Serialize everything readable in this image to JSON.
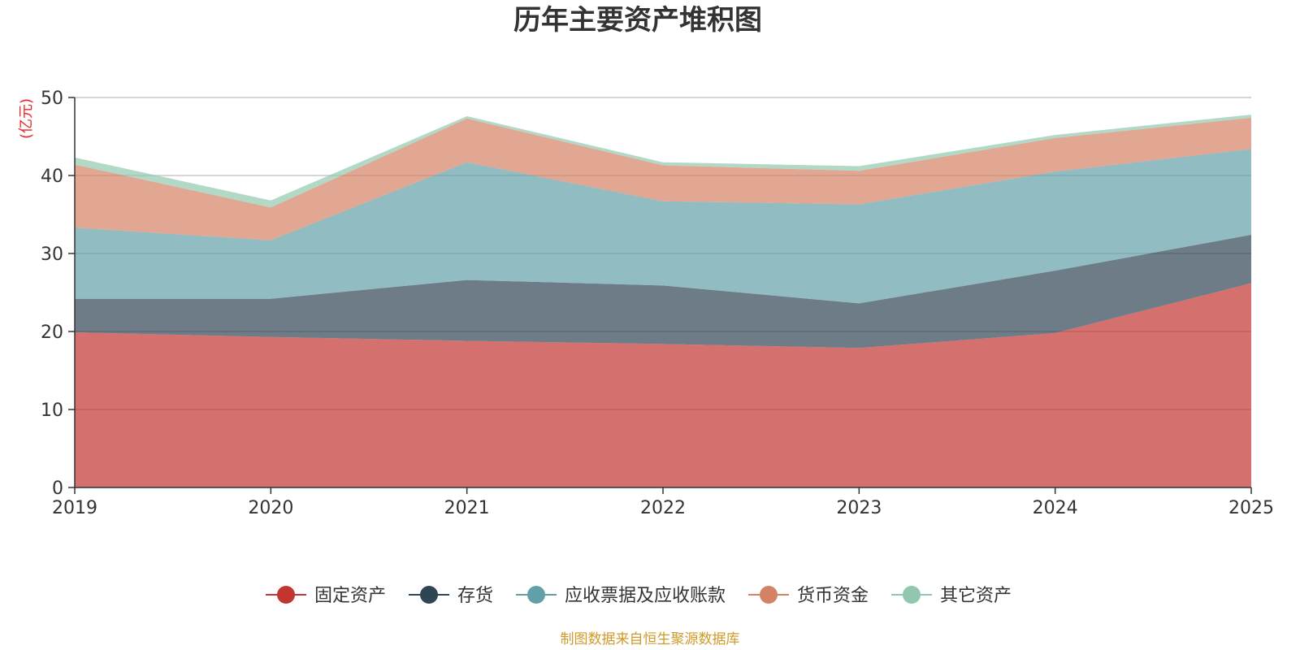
{
  "chart_data": {
    "type": "area",
    "stacked": true,
    "title": "历年主要资产堆积图",
    "unit_label": "(亿元)",
    "x": [
      "2019",
      "2020",
      "2021",
      "2022",
      "2023",
      "2024",
      "2025"
    ],
    "ylim": [
      0,
      50
    ],
    "yticks": [
      "0",
      "10",
      "20",
      "30",
      "40",
      "50"
    ],
    "grid": true,
    "legend_position": "bottom-center",
    "series": [
      {
        "name": "固定资产",
        "color": "#c23531",
        "values": [
          19.9,
          19.3,
          18.8,
          18.4,
          17.9,
          19.8,
          26.2
        ]
      },
      {
        "name": "存货",
        "color": "#2f4554",
        "values": [
          4.3,
          4.9,
          7.8,
          7.5,
          5.7,
          8.0,
          6.2
        ]
      },
      {
        "name": "应收票据及应收账款",
        "color": "#61a0a8",
        "values": [
          9.1,
          7.5,
          15.1,
          10.8,
          12.7,
          12.7,
          11.0
        ]
      },
      {
        "name": "货币资金",
        "color": "#d48265",
        "values": [
          8.1,
          4.2,
          5.6,
          4.6,
          4.3,
          4.3,
          4.0
        ]
      },
      {
        "name": "其它资产",
        "color": "#91c7ae",
        "values": [
          0.9,
          0.9,
          0.3,
          0.4,
          0.6,
          0.4,
          0.4
        ]
      }
    ],
    "source": "制图数据来自恒生聚源数据库",
    "source_color": "#d09a2a",
    "unit_color": "#e8282b"
  }
}
